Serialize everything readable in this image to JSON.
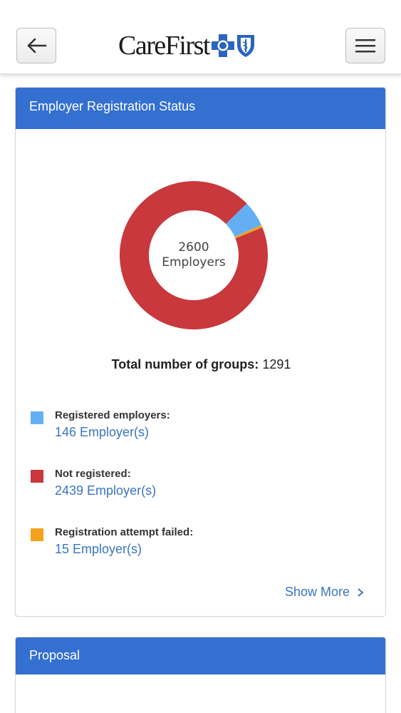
{
  "header": {
    "logo_text": "CareFirst",
    "back_icon": "arrow-left-icon",
    "menu_icon": "hamburger-menu-icon"
  },
  "registration_card": {
    "title": "Employer Registration Status",
    "donut_center_value": "2600",
    "donut_center_label": "Employers",
    "total_label": "Total number of groups:",
    "total_value": "1291",
    "legend": [
      {
        "label": "Registered employers:",
        "value": "146 Employer(s)",
        "color": "#64aff4"
      },
      {
        "label": "Not registered:",
        "value": "2439 Employer(s)",
        "color": "#c8383c"
      },
      {
        "label": "Registration attempt failed:",
        "value": "15 Employer(s)",
        "color": "#f4a21d"
      }
    ],
    "show_more_label": "Show More"
  },
  "chart_data": {
    "type": "pie",
    "categories": [
      "Registered employers",
      "Not registered",
      "Registration attempt failed"
    ],
    "values": [
      146,
      2439,
      15
    ],
    "colors": [
      "#64aff4",
      "#c8383c",
      "#f4a21d"
    ]
  },
  "proposal_card": {
    "title": "Proposal"
  }
}
